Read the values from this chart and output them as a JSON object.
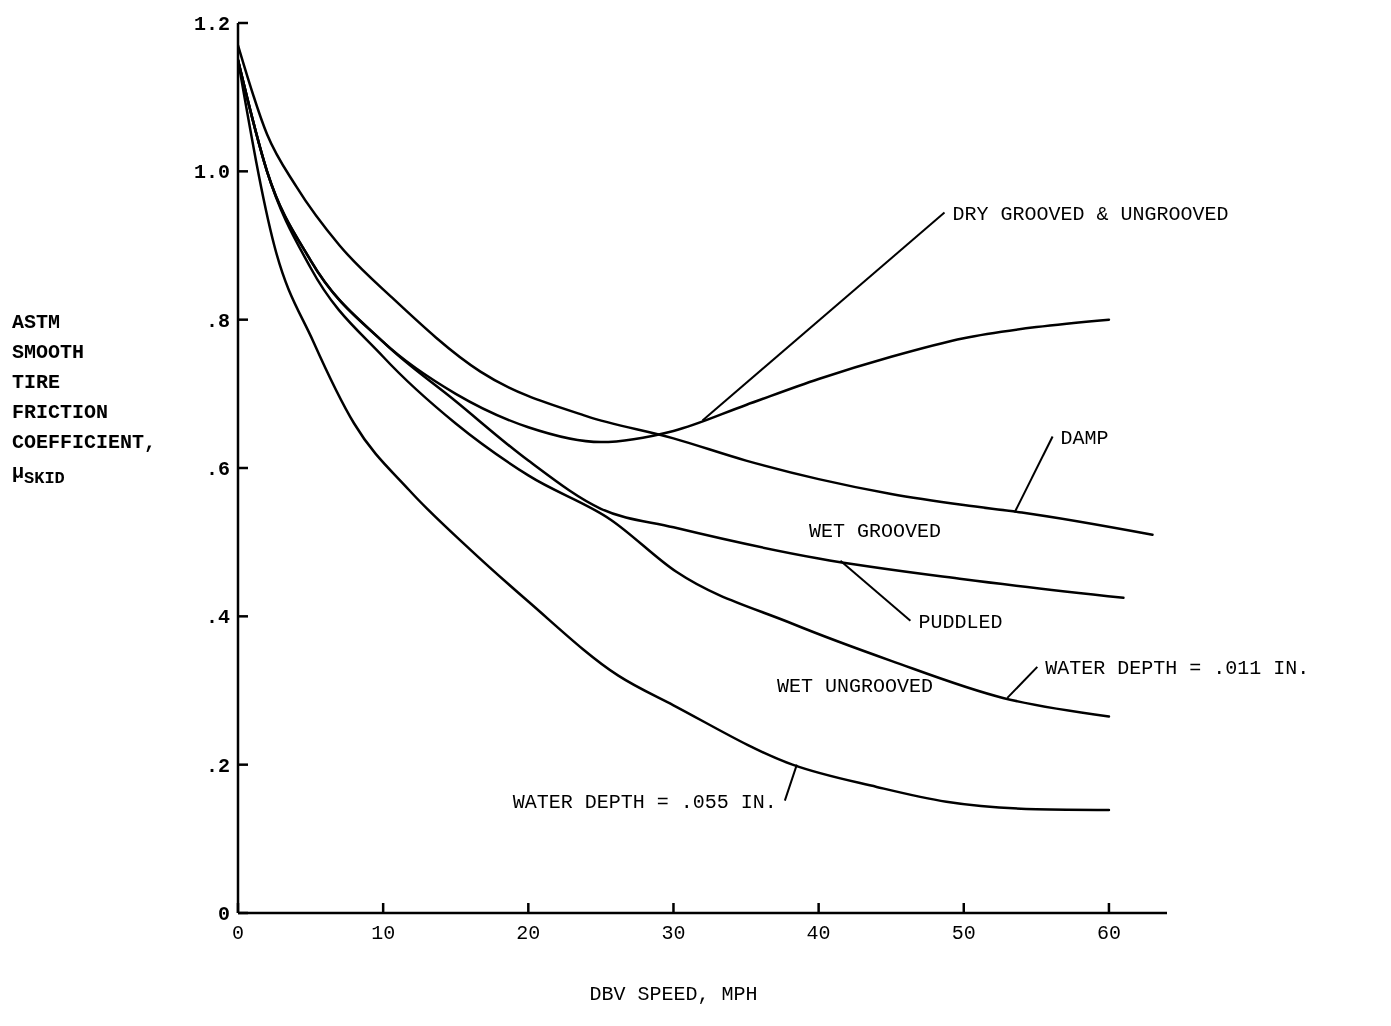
{
  "chart_data": {
    "type": "line",
    "xlabel": "DBV SPEED, MPH",
    "ylabel": "ASTM SMOOTH TIRE FRICTION COEFFICIENT, μ$_{SKID}$",
    "xlim": [
      0,
      64
    ],
    "xticks": [
      0,
      10,
      20,
      30,
      40,
      50,
      60
    ],
    "ylim": [
      0,
      1.2
    ],
    "yticks": [
      0,
      {
        "value": 0.2,
        "label": ".2"
      },
      {
        "value": 0.4,
        "label": ".4"
      },
      {
        "value": 0.6,
        "label": ".6"
      },
      {
        "value": 0.8,
        "label": ".8"
      },
      {
        "value": 1.0,
        "label": "1.0"
      },
      {
        "value": 1.2,
        "label": "1.2"
      }
    ],
    "grid": false,
    "legend": false,
    "marker": "none",
    "line_style": "solid",
    "series": [
      {
        "color": "#000000",
        "x": [
          0,
          2,
          5,
          10,
          15,
          20,
          25,
          30,
          35,
          40,
          45,
          50,
          55,
          60
        ],
        "values": [
          1.15,
          1.0,
          0.88,
          0.77,
          0.7,
          0.655,
          0.635,
          0.65,
          0.685,
          0.72,
          0.75,
          0.775,
          0.79,
          0.8
        ]
      },
      {
        "color": "#000000",
        "x": [
          0,
          2,
          4,
          7,
          10.6,
          16.7,
          24,
          30,
          35,
          40,
          45,
          50,
          54,
          63
        ],
        "values": [
          1.17,
          1.05,
          0.98,
          0.9,
          0.83,
          0.73,
          0.67,
          0.64,
          0.61,
          0.585,
          0.565,
          0.55,
          0.54,
          0.51
        ]
      },
      {
        "color": "#000000",
        "x": [
          0,
          2,
          5,
          10,
          15,
          20,
          25,
          30,
          40,
          50,
          61
        ],
        "values": [
          1.15,
          1.0,
          0.88,
          0.77,
          0.69,
          0.61,
          0.545,
          0.52,
          0.478,
          0.45,
          0.425
        ]
      },
      {
        "color": "#000000",
        "x": [
          0,
          2,
          5,
          10,
          15,
          20,
          25.7,
          30.2,
          38.2,
          45,
          52.7,
          60
        ],
        "values": [
          1.15,
          1.0,
          0.87,
          0.75,
          0.66,
          0.59,
          0.53,
          0.46,
          0.39,
          0.34,
          0.29,
          0.265
        ]
      },
      {
        "color": "#000000",
        "x": [
          0,
          2.5,
          5.2,
          8,
          11.8,
          16,
          20,
          26.2,
          30,
          38.2,
          44,
          48.8,
          55,
          60
        ],
        "values": [
          1.15,
          0.9,
          0.77,
          0.66,
          0.57,
          0.49,
          0.42,
          0.32,
          0.28,
          0.2,
          0.17,
          0.15,
          0.14,
          0.139
        ]
      }
    ],
    "annotations": [
      {
        "text": "DRY GROOVED & UNGROOVED",
        "x": 32,
        "y": 0.664
      },
      {
        "text": "DAMP",
        "x": 53.5,
        "y": 0.54
      },
      {
        "text": "PUDDLED",
        "x": 41.5,
        "y": 0.475
      },
      {
        "text": "WATER DEPTH = .011 IN.",
        "x": 53,
        "y": 0.29
      },
      {
        "text": "WATER DEPTH = .055 IN.",
        "x": 38.5,
        "y": 0.2
      },
      "WET GROOVED",
      "WET UNGROOVED"
    ]
  }
}
